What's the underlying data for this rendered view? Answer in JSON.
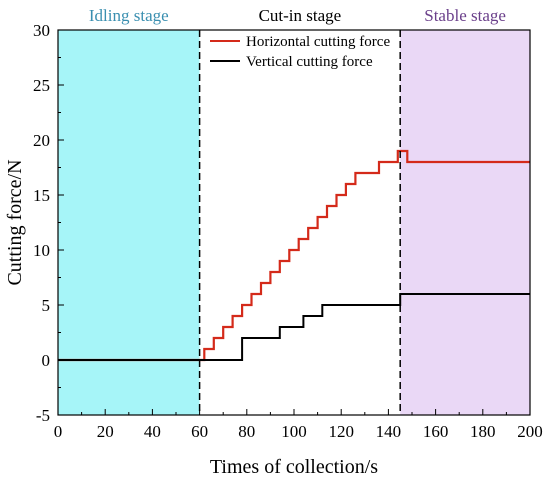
{
  "chart_data": {
    "type": "line",
    "xlabel": "Times of collection/s",
    "ylabel": "Cutting force/N",
    "xlim": [
      0,
      200
    ],
    "ylim": [
      -5,
      30
    ],
    "xticks": [
      "0",
      "20",
      "40",
      "60",
      "80",
      "100",
      "120",
      "140",
      "160",
      "180",
      "200"
    ],
    "yticks": [
      "-5",
      "0",
      "5",
      "10",
      "15",
      "20",
      "25",
      "30"
    ],
    "grid": false,
    "legend": {
      "position": "top-center",
      "entries": [
        "Horizontal cutting force",
        "Vertical cutting force"
      ]
    },
    "stages": [
      {
        "label": "Idling stage",
        "x0": 0,
        "x1": 60,
        "color": "#a6f5f8",
        "label_color": "#3a8fb0"
      },
      {
        "label": "Cut-in stage",
        "x0": 60,
        "x1": 145,
        "color": "#ffffff",
        "label_color": "#000000"
      },
      {
        "label": "Stable stage",
        "x0": 145,
        "x1": 200,
        "color": "#ead8f6",
        "label_color": "#6a3f8a"
      }
    ],
    "series": [
      {
        "name": "Horizontal cutting force",
        "color": "#d42a1a",
        "x": [
          0,
          60,
          60,
          62,
          62,
          64,
          64,
          66,
          66,
          68,
          68,
          70,
          70,
          72,
          72,
          74,
          74,
          76,
          76,
          78,
          78,
          80,
          80,
          82,
          82,
          84,
          84,
          86,
          86,
          88,
          88,
          90,
          90,
          92,
          92,
          94,
          94,
          96,
          96,
          98,
          98,
          100,
          100,
          102,
          102,
          104,
          104,
          106,
          106,
          108,
          108,
          110,
          110,
          112,
          112,
          114,
          114,
          116,
          116,
          118,
          118,
          120,
          120,
          122,
          122,
          124,
          124,
          126,
          126,
          128,
          128,
          130,
          130,
          132,
          132,
          134,
          134,
          136,
          136,
          138,
          138,
          140,
          140,
          142,
          142,
          144,
          144,
          146,
          146,
          148,
          148,
          200
        ],
        "y": [
          0,
          0,
          0,
          0,
          1,
          1,
          1,
          1,
          2,
          2,
          2,
          2,
          3,
          3,
          3,
          3,
          4,
          4,
          4,
          4,
          5,
          5,
          5,
          5,
          6,
          6,
          6,
          6,
          7,
          7,
          7,
          7,
          8,
          8,
          8,
          8,
          9,
          9,
          9,
          9,
          10,
          10,
          10,
          10,
          11,
          11,
          11,
          11,
          12,
          12,
          12,
          12,
          13,
          13,
          13,
          13,
          14,
          14,
          14,
          14,
          15,
          15,
          15,
          15,
          16,
          16,
          16,
          16,
          17,
          17,
          17,
          17,
          17,
          17,
          17,
          17,
          17,
          17,
          18,
          18,
          18,
          18,
          18,
          18,
          18,
          18,
          19,
          19,
          19,
          19,
          18,
          18
        ]
      },
      {
        "name": "Vertical cutting force",
        "color": "#000000",
        "x": [
          0,
          60,
          60,
          78,
          78,
          94,
          94,
          104,
          104,
          112,
          112,
          122,
          122,
          145,
          145,
          200
        ],
        "y": [
          0,
          0,
          0,
          0,
          2,
          2,
          3,
          3,
          4,
          4,
          5,
          5,
          5,
          5,
          6,
          6
        ]
      }
    ],
    "stage_boundaries": [
      60,
      145
    ]
  }
}
